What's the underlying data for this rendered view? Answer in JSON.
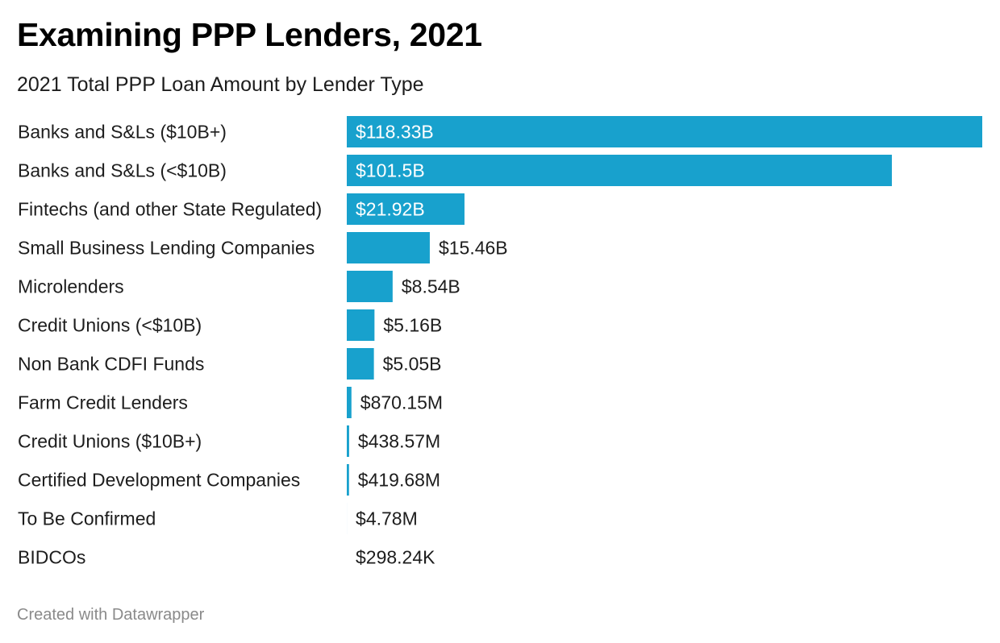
{
  "title": "Examining PPP Lenders, 2021",
  "subtitle": "2021 Total PPP Loan Amount by Lender Type",
  "footer": "Created with Datawrapper",
  "colors": {
    "bar": "#18a1cd",
    "label_inside": "#ffffff",
    "label_outside": "#1d1d1d"
  },
  "chart_data": {
    "type": "bar",
    "orientation": "horizontal",
    "title": "Examining PPP Lenders, 2021",
    "subtitle": "2021 Total PPP Loan Amount by Lender Type",
    "unit": "USD",
    "categories": [
      "Banks and S&Ls ($10B+)",
      "Banks and S&Ls (<$10B)",
      "Fintechs (and other State Regulated)",
      "Small Business Lending Companies",
      "Microlenders",
      "Credit Unions (<$10B)",
      "Non Bank CDFI Funds",
      "Farm Credit Lenders",
      "Credit Unions ($10B+)",
      "Certified Development Companies",
      "To Be Confirmed",
      "BIDCOs"
    ],
    "values": [
      118330000000,
      101500000000,
      21920000000,
      15460000000,
      8540000000,
      5160000000,
      5050000000,
      870150000,
      438570000,
      419680000,
      4780000,
      298240
    ],
    "value_labels": [
      "$118.33B",
      "$101.5B",
      "$21.92B",
      "$15.46B",
      "$8.54B",
      "$5.16B",
      "$5.05B",
      "$870.15M",
      "$438.57M",
      "$419.68M",
      "$4.78M",
      "$298.24K"
    ],
    "xlim": [
      0,
      118330000000
    ],
    "grid": false,
    "legend": "none"
  }
}
